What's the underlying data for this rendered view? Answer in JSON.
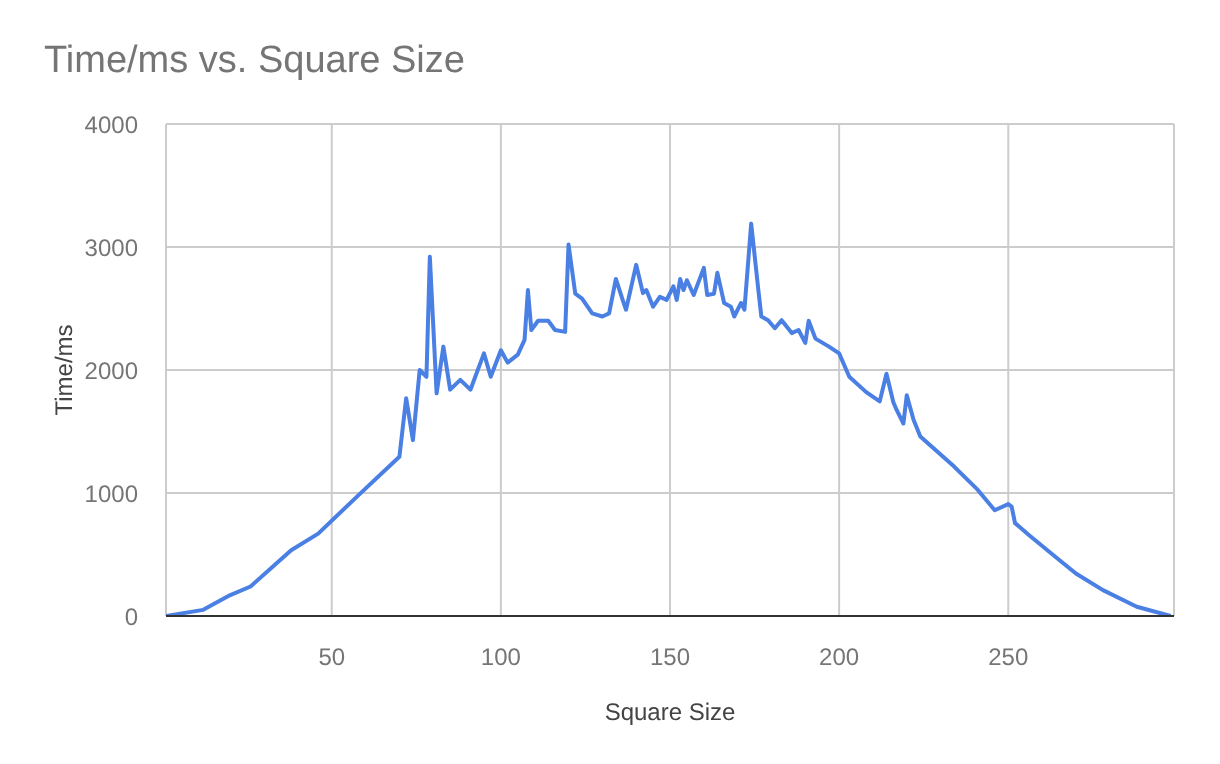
{
  "chart_data": {
    "type": "line",
    "title": "Time/ms vs. Square Size",
    "xlabel": "Square Size",
    "ylabel": "Time/ms",
    "xlim": [
      1,
      299
    ],
    "xticks": [
      50,
      100,
      150,
      200,
      250
    ],
    "ylim": [
      0,
      4000
    ],
    "yticks": [
      0,
      1000,
      2000,
      3000,
      4000
    ],
    "grid": true,
    "legend": false,
    "marker": "none",
    "line_style": "solid",
    "x": [
      1,
      12,
      20,
      26,
      38,
      46,
      58,
      70,
      72,
      74,
      76,
      78,
      79,
      81,
      83,
      85,
      88,
      91,
      95,
      97,
      100,
      102,
      105,
      107,
      108,
      109,
      111,
      114,
      116,
      119,
      120,
      122,
      124,
      127,
      130,
      132,
      134,
      136,
      137,
      140,
      142,
      143,
      145,
      147,
      149,
      151,
      152,
      153,
      154,
      155,
      157,
      160,
      161,
      163,
      164,
      166,
      168,
      169,
      171,
      172,
      174,
      176,
      177,
      179,
      181,
      183,
      186,
      188,
      190,
      191,
      193,
      197,
      200,
      203,
      208,
      212,
      214,
      216,
      217,
      219,
      220,
      222,
      224,
      234,
      241,
      246,
      250,
      251,
      252,
      256,
      264,
      270,
      278,
      288,
      298
    ],
    "series": [
      {
        "color": "#4a7fe3",
        "values": [
          0,
          50,
          170,
          240,
          535,
          670,
          985,
          1295,
          1770,
          1430,
          2000,
          1945,
          2920,
          1810,
          2190,
          1840,
          1920,
          1840,
          2135,
          1945,
          2160,
          2060,
          2125,
          2245,
          2650,
          2325,
          2400,
          2400,
          2325,
          2310,
          3020,
          2620,
          2580,
          2460,
          2435,
          2460,
          2740,
          2570,
          2490,
          2855,
          2625,
          2650,
          2515,
          2595,
          2570,
          2680,
          2570,
          2740,
          2650,
          2730,
          2610,
          2830,
          2610,
          2620,
          2790,
          2545,
          2515,
          2435,
          2545,
          2490,
          3190,
          2680,
          2435,
          2405,
          2340,
          2405,
          2300,
          2325,
          2220,
          2400,
          2255,
          2190,
          2135,
          1945,
          1820,
          1745,
          1970,
          1740,
          1675,
          1565,
          1795,
          1595,
          1460,
          1215,
          1025,
          860,
          910,
          890,
          755,
          660,
          480,
          345,
          210,
          75,
          0
        ]
      }
    ]
  }
}
